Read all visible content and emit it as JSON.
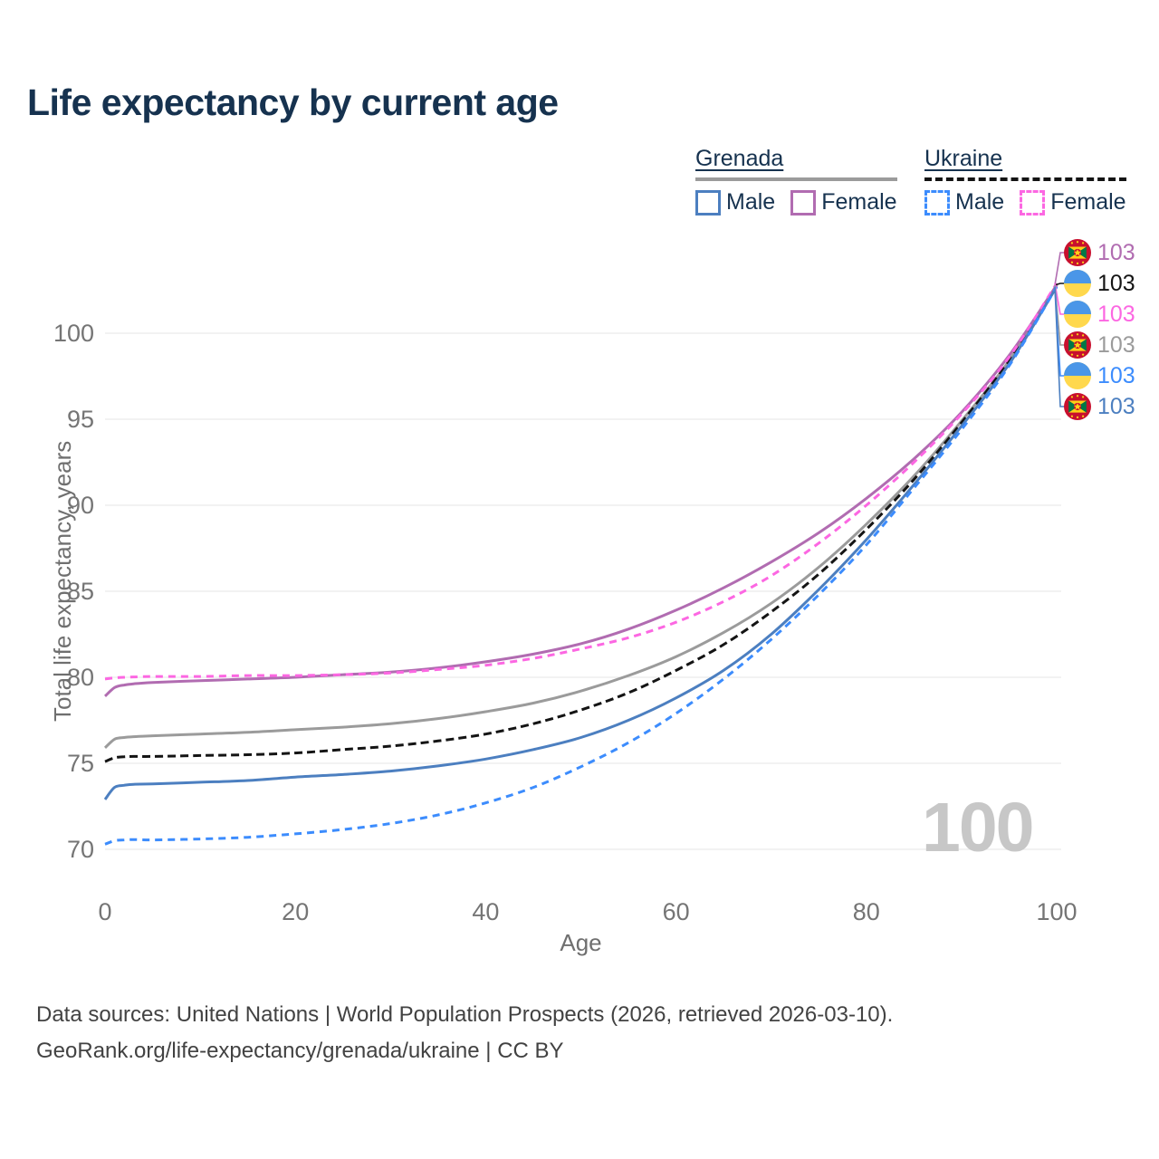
{
  "title": "Life expectancy by current age",
  "colors": {
    "title_text": "#16324f",
    "axis_text": "#6f6f6f",
    "tick_text": "#757575",
    "gridline": "#eaeaea",
    "watermark": "#c7c7c7",
    "footer_text": "#424242",
    "grenada_male": "#4c7fc0",
    "grenada_female": "#b16cb1",
    "grenada_total": "#9b9b9b",
    "ukraine_male": "#3c8cfd",
    "ukraine_female": "#fc67e2",
    "ukraine_total": "#141414"
  },
  "legend": {
    "groups": [
      {
        "label": "Grenada",
        "line_style": "solid",
        "color": "#9b9b9b"
      },
      {
        "label": "Ukraine",
        "line_style": "dashed",
        "color": "#141414"
      }
    ],
    "items": [
      {
        "label": "Male",
        "country": "Grenada",
        "swatch_style": "solid",
        "color": "#4c7fc0"
      },
      {
        "label": "Female",
        "country": "Grenada",
        "swatch_style": "solid",
        "color": "#b16cb1"
      },
      {
        "label": "Male",
        "country": "Ukraine",
        "swatch_style": "dashed",
        "color": "#3c8cfd"
      },
      {
        "label": "Female",
        "country": "Ukraine",
        "swatch_style": "dashed",
        "color": "#fc67e2"
      }
    ]
  },
  "chart_data": {
    "type": "line",
    "title": "Life expectancy by current age",
    "xlabel": "Age",
    "ylabel": "Total life expectancy, years",
    "xlim": [
      0,
      100
    ],
    "ylim": [
      69,
      104
    ],
    "x_ticks": [
      0,
      20,
      40,
      60,
      80,
      100
    ],
    "y_ticks": [
      70,
      75,
      80,
      85,
      90,
      95,
      100
    ],
    "grid": "horizontal",
    "legend_position": "top-right",
    "x": [
      0,
      1,
      2,
      3,
      5,
      10,
      15,
      20,
      25,
      30,
      35,
      40,
      45,
      50,
      55,
      60,
      65,
      70,
      75,
      80,
      85,
      90,
      95,
      100
    ],
    "series": [
      {
        "name": "grenada-total",
        "country": "Grenada",
        "sex": "Both",
        "color": "#9b9b9b",
        "dash": null,
        "end_label": "103",
        "values": [
          75.9,
          76.4,
          76.5,
          76.55,
          76.6,
          76.7,
          76.8,
          76.95,
          77.1,
          77.3,
          77.6,
          78.0,
          78.5,
          79.2,
          80.1,
          81.2,
          82.6,
          84.3,
          86.4,
          88.9,
          91.7,
          94.9,
          98.4,
          102.8
        ]
      },
      {
        "name": "ukraine-total",
        "country": "Ukraine",
        "sex": "Both",
        "color": "#141414",
        "dash": "9 5",
        "end_label": "103",
        "values": [
          75.1,
          75.32,
          75.38,
          75.4,
          75.4,
          75.45,
          75.5,
          75.6,
          75.8,
          76.0,
          76.3,
          76.7,
          77.3,
          78.1,
          79.1,
          80.4,
          81.9,
          83.8,
          86.0,
          88.6,
          91.5,
          94.8,
          98.4,
          102.8
        ]
      },
      {
        "name": "grenada-female",
        "country": "Grenada",
        "sex": "Female",
        "color": "#b16cb1",
        "dash": null,
        "end_label": "103",
        "values": [
          78.9,
          79.4,
          79.55,
          79.62,
          79.7,
          79.8,
          79.9,
          80.0,
          80.15,
          80.3,
          80.55,
          80.9,
          81.35,
          81.95,
          82.8,
          83.9,
          85.2,
          86.7,
          88.4,
          90.4,
          92.7,
          95.4,
          98.7,
          102.8
        ]
      },
      {
        "name": "ukraine-female",
        "country": "Ukraine",
        "sex": "Female",
        "color": "#fc67e2",
        "dash": "8 6",
        "end_label": "103",
        "values": [
          79.9,
          79.97,
          80.0,
          80.02,
          80.05,
          80.05,
          80.1,
          80.1,
          80.15,
          80.25,
          80.45,
          80.7,
          81.1,
          81.65,
          82.3,
          83.2,
          84.4,
          85.9,
          87.8,
          90.0,
          92.5,
          95.3,
          98.6,
          102.9
        ]
      },
      {
        "name": "grenada-male",
        "country": "Grenada",
        "sex": "Male",
        "color": "#4c7fc0",
        "dash": null,
        "end_label": "103",
        "values": [
          72.9,
          73.6,
          73.72,
          73.78,
          73.8,
          73.9,
          74.0,
          74.2,
          74.35,
          74.55,
          74.85,
          75.25,
          75.8,
          76.5,
          77.5,
          78.8,
          80.4,
          82.5,
          85.1,
          88.0,
          91.2,
          94.6,
          98.2,
          102.7
        ]
      },
      {
        "name": "ukraine-male",
        "country": "Ukraine",
        "sex": "Male",
        "color": "#3c8cfd",
        "dash": "8 6",
        "end_label": "103",
        "values": [
          70.3,
          70.5,
          70.55,
          70.57,
          70.55,
          70.6,
          70.7,
          70.9,
          71.15,
          71.5,
          72.0,
          72.7,
          73.6,
          74.8,
          76.2,
          77.9,
          79.9,
          82.2,
          84.8,
          87.7,
          91.0,
          94.4,
          98.1,
          102.7
        ]
      }
    ]
  },
  "right_labels": [
    {
      "flag": "grenada",
      "value": "103",
      "color": "#b16cb1",
      "series_index": 2
    },
    {
      "flag": "ukraine",
      "value": "103",
      "color": "#141414",
      "series_index": 1
    },
    {
      "flag": "ukraine",
      "value": "103",
      "color": "#fc67e2",
      "series_index": 3
    },
    {
      "flag": "grenada",
      "value": "103",
      "color": "#9b9b9b",
      "series_index": 0
    },
    {
      "flag": "ukraine",
      "value": "103",
      "color": "#3c8cfd",
      "series_index": 5
    },
    {
      "flag": "grenada",
      "value": "103",
      "color": "#4c7fc0",
      "series_index": 4
    }
  ],
  "watermark": "100",
  "footer": {
    "line1": "Data sources: United Nations | World Population Prospects (2026, retrieved 2026-03-10).",
    "line2": "GeoRank.org/life-expectancy/grenada/ukraine | CC BY"
  }
}
